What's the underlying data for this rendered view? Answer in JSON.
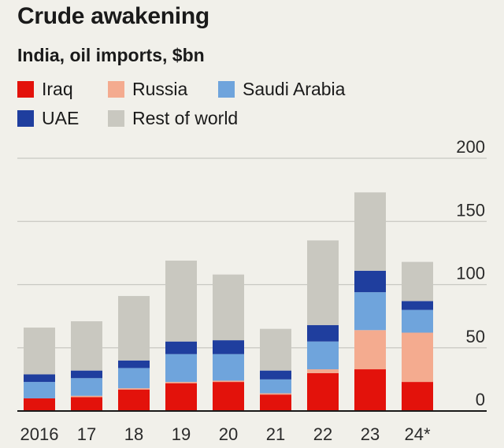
{
  "title": "Crude awakening",
  "subtitle": "India, oil imports, $bn",
  "legend": [
    {
      "label": "Iraq",
      "color": "#e3120b"
    },
    {
      "label": "Russia",
      "color": "#f4ab8f"
    },
    {
      "label": "Saudi Arabia",
      "color": "#6fa4dc"
    },
    {
      "label": "UAE",
      "color": "#1f3e9e"
    },
    {
      "label": "Rest of world",
      "color": "#c9c8c0"
    }
  ],
  "chart_data": {
    "type": "bar",
    "stacked": true,
    "categories": [
      "2016",
      "17",
      "18",
      "19",
      "20",
      "21",
      "22",
      "23",
      "24*"
    ],
    "series": [
      {
        "name": "Iraq",
        "color": "#e3120b",
        "values": [
          10,
          11,
          17,
          22,
          23,
          13,
          30,
          33,
          23
        ]
      },
      {
        "name": "Russia",
        "color": "#f4ab8f",
        "values": [
          0,
          1,
          1,
          1,
          1,
          1,
          3,
          31,
          39
        ]
      },
      {
        "name": "Saudi Arabia",
        "color": "#6fa4dc",
        "values": [
          13,
          14,
          16,
          22,
          21,
          11,
          22,
          30,
          18
        ]
      },
      {
        "name": "UAE",
        "color": "#1f3e9e",
        "values": [
          6,
          6,
          6,
          10,
          11,
          7,
          13,
          17,
          7
        ]
      },
      {
        "name": "Rest of world",
        "color": "#c9c8c0",
        "values": [
          37,
          39,
          51,
          64,
          52,
          33,
          67,
          62,
          31
        ]
      }
    ],
    "yticks": [
      0,
      50,
      100,
      150,
      200
    ],
    "ylim": [
      0,
      200
    ],
    "gridlines": true,
    "y_axis_position": "right",
    "legend_position": "top-left"
  }
}
